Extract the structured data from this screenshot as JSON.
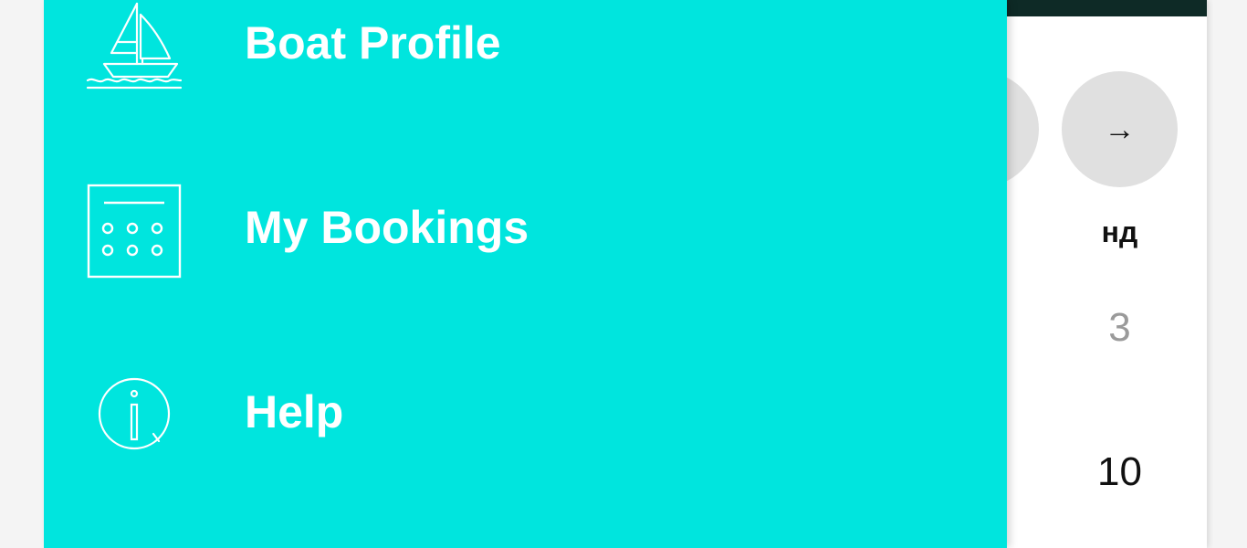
{
  "drawer": {
    "background_color": "#00e5de",
    "items": [
      {
        "label": "Boat Profile",
        "icon": "sailboat-icon"
      },
      {
        "label": "My Bookings",
        "icon": "calendar-icon"
      },
      {
        "label": "Help",
        "icon": "info-icon"
      }
    ]
  },
  "calendar": {
    "next_arrow": "→",
    "weekday_label": "нд",
    "days": [
      "3",
      "10"
    ]
  }
}
